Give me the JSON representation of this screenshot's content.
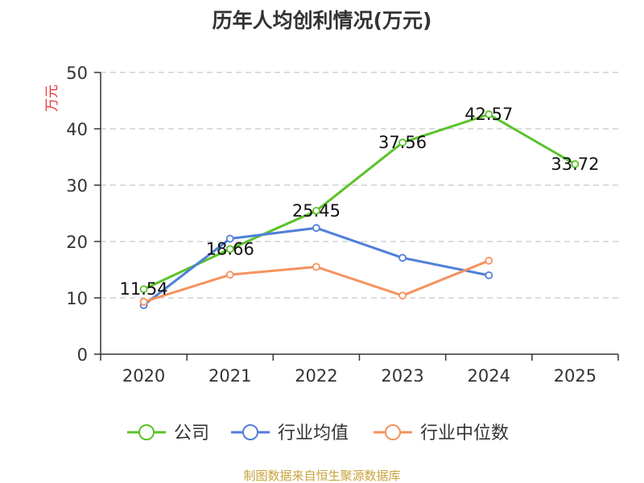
{
  "chart_data": {
    "type": "line",
    "title": "历年人均创利情况(万元)",
    "ylabel": "万元",
    "categories": [
      "2020",
      "2021",
      "2022",
      "2023",
      "2024",
      "2025"
    ],
    "y_ticks": [
      "0",
      "10",
      "20",
      "30",
      "40",
      "50"
    ],
    "ylim": [
      0,
      50
    ],
    "grid": true,
    "legend_position": "bottom",
    "series": [
      {
        "name": "公司",
        "color": "#5bc22c",
        "values": [
          11.54,
          18.66,
          25.45,
          37.56,
          42.57,
          33.72
        ],
        "labels": [
          "11.54",
          "18.66",
          "25.45",
          "37.56",
          "42.57",
          "33.72"
        ],
        "show_labels": true
      },
      {
        "name": "行业均值",
        "color": "#4f7fd9",
        "values": [
          8.7,
          20.5,
          22.4,
          17.1,
          14.0,
          null
        ],
        "show_labels": false
      },
      {
        "name": "行业中位数",
        "color": "#f5925e",
        "values": [
          9.3,
          14.1,
          15.5,
          10.4,
          16.6,
          null
        ],
        "show_labels": false
      }
    ],
    "source": "制图数据来自恒生聚源数据库",
    "ylabel_color": "#e03a3a",
    "source_color": "#c9a23c"
  }
}
